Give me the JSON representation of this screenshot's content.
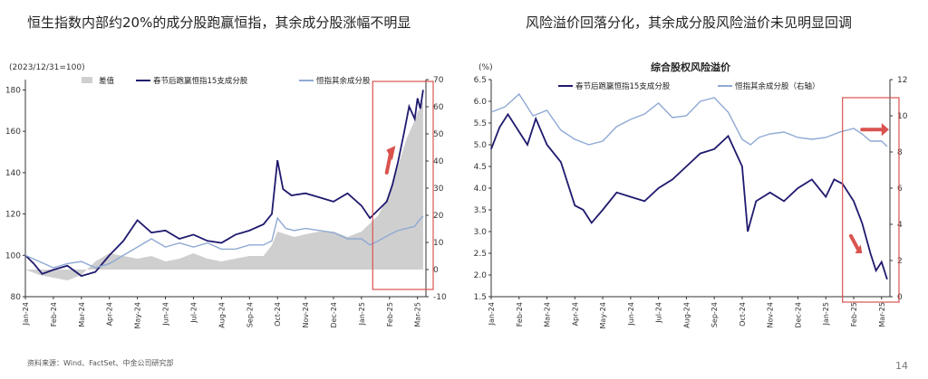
{
  "titles": {
    "left": "恒生指数内部约20%的成分股跑赢恒指，其余成分股涨幅不明显",
    "right": "风险溢价回落分化，其余成分股风险溢价未见明显回调"
  },
  "footer": {
    "source": "资料来源：Wind、FactSet、中金公司研究部",
    "page_number": "14"
  },
  "colors": {
    "navy": "#1f1a6e",
    "light_blue": "#8fa9d4",
    "gray_fill": "#cfcfcf",
    "highlight_red": "#d9534f"
  },
  "chart_data": [
    {
      "type": "line",
      "title": "",
      "index_note": "(2023/12/31=100)",
      "x_ticks": [
        "Jan-24",
        "Feb-24",
        "Mar-24",
        "Apr-24",
        "May-24",
        "Jun-24",
        "Jul-24",
        "Aug-24",
        "Sep-24",
        "Oct-24",
        "Nov-24",
        "Dec-24",
        "Jan-25",
        "Feb-25",
        "Mar-25"
      ],
      "y_left": {
        "ticks": [
          80,
          100,
          120,
          140,
          160,
          180
        ],
        "range": [
          80,
          185
        ]
      },
      "y_right": {
        "ticks": [
          -10,
          0,
          10,
          20,
          30,
          40,
          50,
          60,
          70
        ],
        "range": [
          -10,
          70
        ]
      },
      "grid": false,
      "legend_position": "top",
      "series": [
        {
          "name": "差值",
          "style": "area",
          "axis": "right",
          "color": "#cfcfcf",
          "x": [
            0,
            0.5,
            1,
            1.5,
            2,
            2.5,
            3,
            3.5,
            4,
            4.5,
            5,
            5.5,
            6,
            6.5,
            7,
            7.5,
            8,
            8.5,
            8.8,
            9,
            9.3,
            9.6,
            10,
            10.5,
            11,
            11.5,
            12,
            12.3,
            12.6,
            13,
            13.3,
            13.6,
            13.9,
            14,
            14.2
          ],
          "values": [
            0,
            -2,
            -3,
            -4,
            -2,
            3,
            6,
            5,
            4,
            5,
            3,
            4,
            6,
            4,
            3,
            4,
            5,
            5,
            9,
            14,
            13,
            12,
            13,
            14,
            14,
            12,
            14,
            17,
            20,
            28,
            38,
            48,
            55,
            58,
            62
          ]
        },
        {
          "name": "春节后跑赢恒指15支成分股",
          "style": "line",
          "axis": "left",
          "color": "#1f1a6e",
          "x": [
            0,
            0.3,
            0.6,
            1,
            1.5,
            2,
            2.5,
            3,
            3.5,
            4,
            4.5,
            5,
            5.5,
            6,
            6.5,
            7,
            7.5,
            8,
            8.5,
            8.8,
            9,
            9.2,
            9.5,
            10,
            10.5,
            11,
            11.5,
            12,
            12.3,
            12.6,
            12.9,
            13.1,
            13.3,
            13.5,
            13.7,
            13.9,
            14,
            14.1,
            14.2
          ],
          "values": [
            100,
            96,
            91,
            93,
            95,
            90,
            92,
            100,
            107,
            117,
            111,
            112,
            108,
            110,
            107,
            106,
            110,
            112,
            115,
            120,
            146,
            132,
            129,
            130,
            128,
            126,
            130,
            124,
            118,
            122,
            126,
            134,
            145,
            158,
            172,
            166,
            176,
            171,
            180
          ]
        },
        {
          "name": "恒指其余成分股",
          "style": "line",
          "axis": "left",
          "color": "#8fa9d4",
          "x": [
            0,
            0.5,
            1,
            1.5,
            2,
            2.5,
            3,
            3.5,
            4,
            4.5,
            5,
            5.5,
            6,
            6.5,
            7,
            7.5,
            8,
            8.5,
            8.8,
            9,
            9.3,
            9.6,
            10,
            10.5,
            11,
            11.5,
            12,
            12.3,
            12.6,
            13,
            13.3,
            13.6,
            13.9,
            14,
            14.2
          ],
          "values": [
            100,
            97,
            94,
            96,
            97,
            94,
            96,
            100,
            104,
            108,
            104,
            106,
            104,
            106,
            103,
            103,
            105,
            105,
            107,
            118,
            113,
            112,
            113,
            112,
            111,
            108,
            108,
            105,
            107,
            110,
            112,
            113,
            114,
            116,
            119
          ]
        }
      ]
    },
    {
      "type": "line",
      "title": "综合股权风险溢价",
      "unit_label": "(%)",
      "x_ticks": [
        "Jan-24",
        "Feb-24",
        "Mar-24",
        "Apr-24",
        "May-24",
        "Jun-24",
        "Jul-24",
        "Aug-24",
        "Sep-24",
        "Oct-24",
        "Nov-24",
        "Dec-24",
        "Jan-25",
        "Feb-25",
        "Mar-25"
      ],
      "y_left": {
        "ticks": [
          1.5,
          2.0,
          2.5,
          3.0,
          3.5,
          4.0,
          4.5,
          5.0,
          5.5,
          6.0,
          6.5
        ],
        "range": [
          1.5,
          6.5
        ]
      },
      "y_right": {
        "ticks": [
          0,
          2,
          4,
          6,
          8,
          10,
          12
        ],
        "range": [
          0,
          12
        ]
      },
      "grid": false,
      "legend_position": "top",
      "series": [
        {
          "name": "春节后跑赢恒指15支成分股",
          "style": "line",
          "axis": "left",
          "color": "#1f1a6e",
          "x": [
            0,
            0.3,
            0.6,
            1,
            1.3,
            1.6,
            2,
            2.5,
            3,
            3.3,
            3.6,
            4,
            4.5,
            5,
            5.5,
            6,
            6.5,
            7,
            7.5,
            8,
            8.5,
            9,
            9.2,
            9.5,
            10,
            10.5,
            11,
            11.5,
            12,
            12.3,
            12.6,
            13,
            13.3,
            13.6,
            13.8,
            14,
            14.2
          ],
          "values": [
            4.9,
            5.4,
            5.7,
            5.3,
            5.0,
            5.6,
            5.0,
            4.6,
            3.6,
            3.5,
            3.2,
            3.5,
            3.9,
            3.8,
            3.7,
            4.0,
            4.2,
            4.5,
            4.8,
            4.9,
            5.2,
            4.5,
            3.0,
            3.7,
            3.9,
            3.7,
            4.0,
            4.2,
            3.8,
            4.2,
            4.1,
            3.7,
            3.2,
            2.5,
            2.1,
            2.3,
            1.9
          ]
        },
        {
          "name": "恒指其余成分股（右轴）",
          "style": "line",
          "axis": "right",
          "color": "#8fa9d4",
          "x": [
            0,
            0.5,
            1,
            1.5,
            2,
            2.5,
            3,
            3.5,
            4,
            4.5,
            5,
            5.5,
            6,
            6.5,
            7,
            7.5,
            8,
            8.5,
            9,
            9.3,
            9.6,
            10,
            10.5,
            11,
            11.5,
            12,
            12.5,
            13,
            13.3,
            13.6,
            14,
            14.2
          ],
          "values": [
            10.2,
            10.5,
            11.2,
            10.0,
            10.3,
            9.2,
            8.7,
            8.4,
            8.6,
            9.4,
            9.8,
            10.1,
            10.7,
            9.9,
            10.0,
            10.8,
            11.0,
            10.2,
            8.7,
            8.4,
            8.8,
            9.0,
            9.1,
            8.8,
            8.7,
            8.8,
            9.1,
            9.3,
            9.0,
            8.6,
            8.6,
            8.3
          ]
        }
      ]
    }
  ]
}
